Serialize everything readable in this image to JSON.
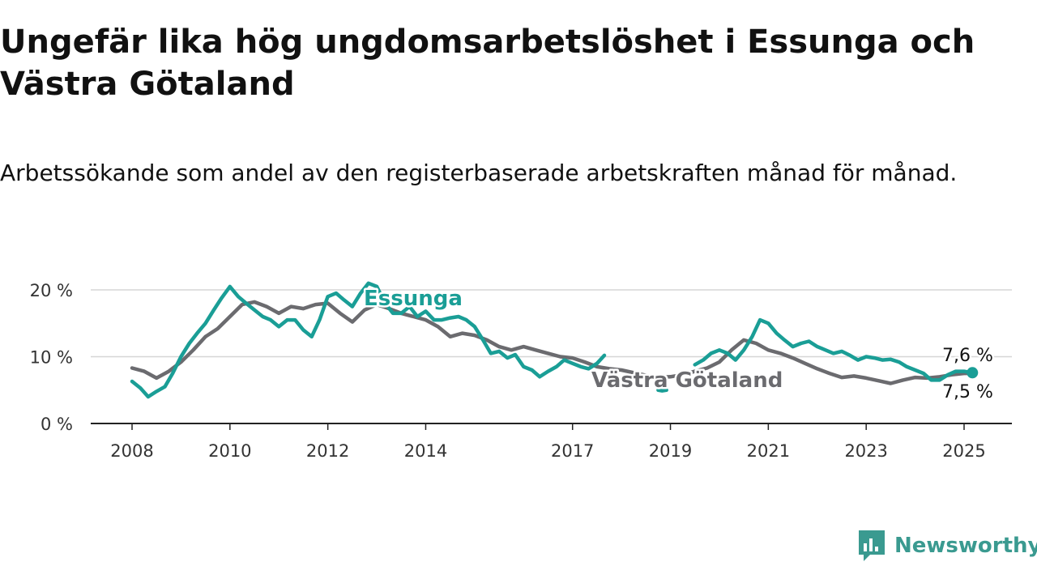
{
  "title": "Ungefär lika hög ungdomsarbetslöshet i Essunga och Västra Götaland",
  "subtitle": "Arbetssökande som andel av den registerbaserade arbetskraften månad för månad.",
  "brand": {
    "name": "Newsworthy",
    "icon": "bar-chart-speech-bubble-icon",
    "color": "#3a9a90"
  },
  "chart_data": {
    "type": "line",
    "x_range": [
      2008,
      2025
    ],
    "x_ticks": [
      {
        "value": 2008,
        "label": "2008"
      },
      {
        "value": 2010,
        "label": "2010"
      },
      {
        "value": 2012,
        "label": "2012"
      },
      {
        "value": 2014,
        "label": "2014"
      },
      {
        "value": 2017,
        "label": "2017"
      },
      {
        "value": 2019,
        "label": "2019"
      },
      {
        "value": 2021,
        "label": "2021"
      },
      {
        "value": 2023,
        "label": "2023"
      },
      {
        "value": 2025,
        "label": "2025"
      }
    ],
    "ylim": [
      0,
      22
    ],
    "y_ticks": [
      {
        "value": 0,
        "label": "0 %"
      },
      {
        "value": 10,
        "label": "10 %"
      },
      {
        "value": 20,
        "label": "20 %"
      }
    ],
    "grid": "horizontal",
    "series": [
      {
        "name": "Västra Götaland",
        "color": "#6b6b6f",
        "end_label": "7,5 %",
        "points": [
          [
            2008.0,
            8.3
          ],
          [
            2008.25,
            7.8
          ],
          [
            2008.5,
            6.8
          ],
          [
            2008.75,
            7.8
          ],
          [
            2009.0,
            9.2
          ],
          [
            2009.25,
            11.0
          ],
          [
            2009.5,
            13.0
          ],
          [
            2009.75,
            14.2
          ],
          [
            2010.0,
            16.0
          ],
          [
            2010.25,
            17.8
          ],
          [
            2010.5,
            18.2
          ],
          [
            2010.75,
            17.5
          ],
          [
            2011.0,
            16.5
          ],
          [
            2011.25,
            17.5
          ],
          [
            2011.5,
            17.2
          ],
          [
            2011.75,
            17.8
          ],
          [
            2012.0,
            18.0
          ],
          [
            2012.25,
            16.5
          ],
          [
            2012.5,
            15.2
          ],
          [
            2012.75,
            17.0
          ],
          [
            2013.0,
            17.8
          ],
          [
            2013.25,
            17.2
          ],
          [
            2013.5,
            16.5
          ],
          [
            2013.75,
            16.0
          ],
          [
            2014.0,
            15.5
          ],
          [
            2014.25,
            14.5
          ],
          [
            2014.5,
            13.0
          ],
          [
            2014.75,
            13.5
          ],
          [
            2015.0,
            13.2
          ],
          [
            2015.25,
            12.5
          ],
          [
            2015.5,
            11.5
          ],
          [
            2015.75,
            11.0
          ],
          [
            2016.0,
            11.5
          ],
          [
            2016.25,
            11.0
          ],
          [
            2016.5,
            10.5
          ],
          [
            2016.75,
            10.0
          ],
          [
            2017.0,
            9.8
          ],
          [
            2017.25,
            9.2
          ],
          [
            2017.5,
            8.5
          ],
          [
            2017.75,
            8.2
          ],
          [
            2018.0,
            8.0
          ],
          [
            2018.25,
            7.6
          ],
          [
            2018.5,
            7.2
          ],
          [
            2018.75,
            6.9
          ],
          [
            2019.0,
            7.0
          ],
          [
            2019.25,
            7.3
          ],
          [
            2019.5,
            7.8
          ],
          [
            2019.75,
            8.3
          ],
          [
            2020.0,
            9.2
          ],
          [
            2020.25,
            11.0
          ],
          [
            2020.5,
            12.5
          ],
          [
            2020.75,
            12.0
          ],
          [
            2021.0,
            11.0
          ],
          [
            2021.25,
            10.5
          ],
          [
            2021.5,
            9.8
          ],
          [
            2021.75,
            9.0
          ],
          [
            2022.0,
            8.2
          ],
          [
            2022.25,
            7.5
          ],
          [
            2022.5,
            6.9
          ],
          [
            2022.75,
            7.1
          ],
          [
            2023.0,
            6.8
          ],
          [
            2023.25,
            6.4
          ],
          [
            2023.5,
            6.0
          ],
          [
            2023.75,
            6.5
          ],
          [
            2024.0,
            6.9
          ],
          [
            2024.25,
            6.8
          ],
          [
            2024.5,
            7.0
          ],
          [
            2024.75,
            7.3
          ],
          [
            2025.0,
            7.5
          ],
          [
            2025.17,
            7.5
          ]
        ]
      },
      {
        "name": "Essunga",
        "color": "#1a9e96",
        "end_label": "7,6 %",
        "segments": [
          [
            [
              2008.0,
              6.3
            ],
            [
              2008.17,
              5.3
            ],
            [
              2008.33,
              4.0
            ],
            [
              2008.5,
              4.8
            ],
            [
              2008.67,
              5.5
            ],
            [
              2008.83,
              7.5
            ],
            [
              2009.0,
              10.0
            ],
            [
              2009.17,
              12.0
            ],
            [
              2009.33,
              13.5
            ],
            [
              2009.5,
              15.0
            ],
            [
              2009.67,
              17.0
            ],
            [
              2009.83,
              18.8
            ],
            [
              2010.0,
              20.5
            ],
            [
              2010.17,
              19.0
            ],
            [
              2010.33,
              18.0
            ],
            [
              2010.5,
              17.0
            ],
            [
              2010.67,
              16.0
            ],
            [
              2010.83,
              15.5
            ],
            [
              2011.0,
              14.5
            ],
            [
              2011.17,
              15.5
            ],
            [
              2011.33,
              15.5
            ],
            [
              2011.5,
              14.0
            ],
            [
              2011.67,
              13.0
            ],
            [
              2011.83,
              15.5
            ],
            [
              2012.0,
              19.0
            ],
            [
              2012.17,
              19.5
            ],
            [
              2012.33,
              18.5
            ],
            [
              2012.5,
              17.5
            ],
            [
              2012.67,
              19.5
            ],
            [
              2012.83,
              21.0
            ],
            [
              2013.0,
              20.5
            ],
            [
              2013.17,
              18.0
            ],
            [
              2013.33,
              16.5
            ],
            [
              2013.5,
              16.5
            ],
            [
              2013.67,
              17.5
            ],
            [
              2013.83,
              16.0
            ],
            [
              2014.0,
              16.8
            ],
            [
              2014.17,
              15.5
            ],
            [
              2014.33,
              15.5
            ],
            [
              2014.5,
              15.8
            ],
            [
              2014.67,
              16.0
            ],
            [
              2014.83,
              15.5
            ],
            [
              2015.0,
              14.5
            ],
            [
              2015.17,
              12.5
            ],
            [
              2015.33,
              10.5
            ],
            [
              2015.5,
              10.8
            ],
            [
              2015.67,
              9.8
            ],
            [
              2015.83,
              10.3
            ],
            [
              2016.0,
              8.5
            ],
            [
              2016.17,
              8.0
            ],
            [
              2016.33,
              7.0
            ],
            [
              2016.5,
              7.8
            ],
            [
              2016.67,
              8.5
            ],
            [
              2016.83,
              9.5
            ],
            [
              2017.0,
              9.0
            ],
            [
              2017.17,
              8.5
            ],
            [
              2017.33,
              8.2
            ],
            [
              2017.5,
              9.0
            ],
            [
              2017.65,
              10.2
            ]
          ],
          [
            [
              2018.75,
              5.0
            ],
            [
              2018.83,
              4.9
            ],
            [
              2018.92,
              5.0
            ]
          ],
          [
            [
              2019.5,
              8.8
            ],
            [
              2019.67,
              9.5
            ],
            [
              2019.83,
              10.5
            ],
            [
              2020.0,
              11.0
            ],
            [
              2020.17,
              10.5
            ],
            [
              2020.33,
              9.5
            ],
            [
              2020.5,
              11.0
            ],
            [
              2020.67,
              13.0
            ],
            [
              2020.83,
              15.5
            ],
            [
              2021.0,
              15.0
            ],
            [
              2021.17,
              13.5
            ],
            [
              2021.33,
              12.5
            ],
            [
              2021.5,
              11.5
            ],
            [
              2021.67,
              12.0
            ],
            [
              2021.83,
              12.3
            ],
            [
              2022.0,
              11.5
            ],
            [
              2022.17,
              11.0
            ],
            [
              2022.33,
              10.5
            ],
            [
              2022.5,
              10.8
            ],
            [
              2022.67,
              10.2
            ],
            [
              2022.83,
              9.5
            ],
            [
              2023.0,
              10.0
            ],
            [
              2023.17,
              9.8
            ],
            [
              2023.33,
              9.5
            ],
            [
              2023.5,
              9.6
            ],
            [
              2023.67,
              9.2
            ],
            [
              2023.83,
              8.5
            ],
            [
              2024.0,
              8.0
            ],
            [
              2024.17,
              7.5
            ],
            [
              2024.33,
              6.5
            ],
            [
              2024.5,
              6.5
            ],
            [
              2024.67,
              7.3
            ],
            [
              2024.83,
              7.8
            ],
            [
              2025.0,
              7.8
            ],
            [
              2025.17,
              7.6
            ]
          ]
        ]
      }
    ]
  }
}
